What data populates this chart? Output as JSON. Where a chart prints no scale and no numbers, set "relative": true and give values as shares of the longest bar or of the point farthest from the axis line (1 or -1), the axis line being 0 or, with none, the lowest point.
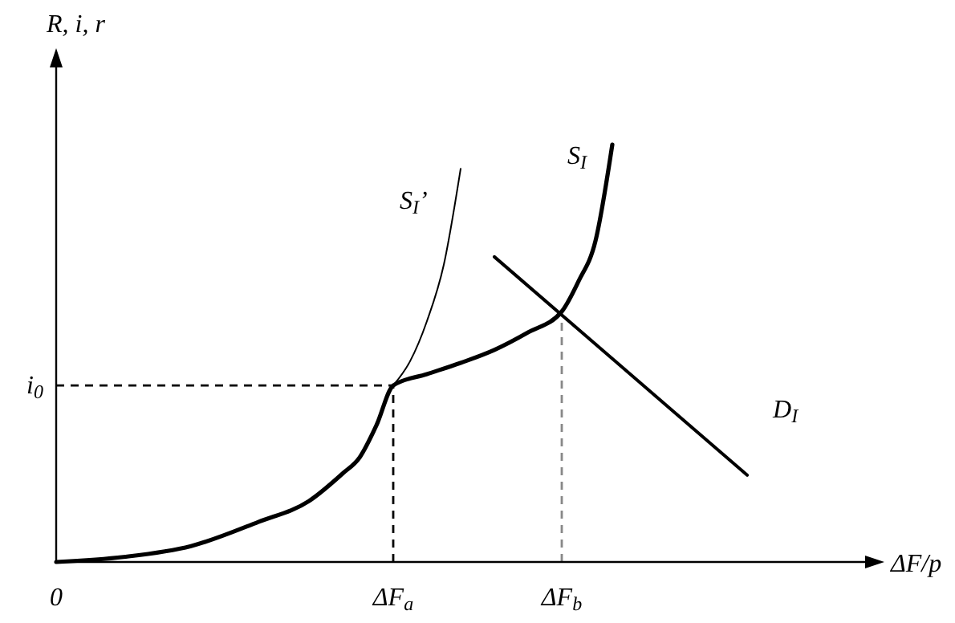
{
  "chart_data": {
    "type": "line",
    "relative": true,
    "xlabel": "ΔF/p",
    "ylabel": "R, i, r",
    "categories": [
      "0",
      null,
      null,
      null,
      null,
      null,
      null,
      null,
      null,
      null,
      null,
      null,
      null,
      null,
      null,
      null,
      null,
      null,
      null,
      null,
      "ΔF$_{a}$",
      null,
      null,
      null,
      null,
      null,
      null,
      null,
      null,
      null,
      "ΔF$_{b}$",
      null,
      null,
      null,
      null,
      null,
      null,
      null,
      null,
      null,
      null,
      null,
      null,
      null,
      null,
      null,
      null,
      null,
      null
    ],
    "series": [
      {
        "name": "S$_{I}$’",
        "color": "#000000",
        "values": [
          null,
          null,
          null,
          null,
          null,
          null,
          null,
          null,
          null,
          null,
          null,
          null,
          null,
          null,
          null,
          null,
          null,
          null,
          null,
          null,
          0.423,
          0.481,
          0.577,
          0.712,
          0.942,
          null,
          null,
          null,
          null,
          null,
          null,
          null,
          null,
          null,
          null,
          null,
          null,
          null,
          null,
          null,
          null,
          null,
          null,
          null,
          null,
          null,
          null,
          null,
          null
        ]
      },
      {
        "name": "S$_{I}$",
        "color": "#000000",
        "values": [
          0,
          null,
          null,
          null,
          0.012,
          null,
          null,
          null,
          0.038,
          null,
          null,
          null,
          0.096,
          null,
          null,
          0.146,
          null,
          0.212,
          0.25,
          0.327,
          0.423,
          null,
          0.45,
          null,
          0.477,
          null,
          0.508,
          null,
          0.55,
          null,
          0.6,
          0.673,
          0.769,
          1,
          null,
          null,
          null,
          null,
          null,
          null,
          null,
          null,
          null,
          null,
          null,
          null,
          null,
          null,
          null
        ]
      },
      {
        "name": "D$_{I}$",
        "color": "#000000",
        "values": [
          null,
          null,
          null,
          null,
          null,
          null,
          null,
          null,
          null,
          null,
          null,
          null,
          null,
          null,
          null,
          null,
          null,
          null,
          null,
          null,
          null,
          null,
          null,
          null,
          null,
          null,
          0.731,
          null,
          null,
          null,
          null,
          null,
          null,
          null,
          null,
          null,
          null,
          null,
          null,
          null,
          null,
          0.208,
          null,
          null,
          null,
          null,
          null,
          null,
          null
        ]
      }
    ],
    "ref_lines": [
      {
        "axis": "y",
        "value": 0.423,
        "label": "i$_{0}$",
        "color": "#000000",
        "line_style": "dashed"
      },
      {
        "axis": "x",
        "value": "ΔF$_{a}$",
        "color": "#000000",
        "line_style": "dashed"
      },
      {
        "axis": "x",
        "value": "ΔF$_{b}$",
        "color": "#888888",
        "line_style": "dashed"
      }
    ],
    "marker": "none",
    "line_style": "solid"
  }
}
